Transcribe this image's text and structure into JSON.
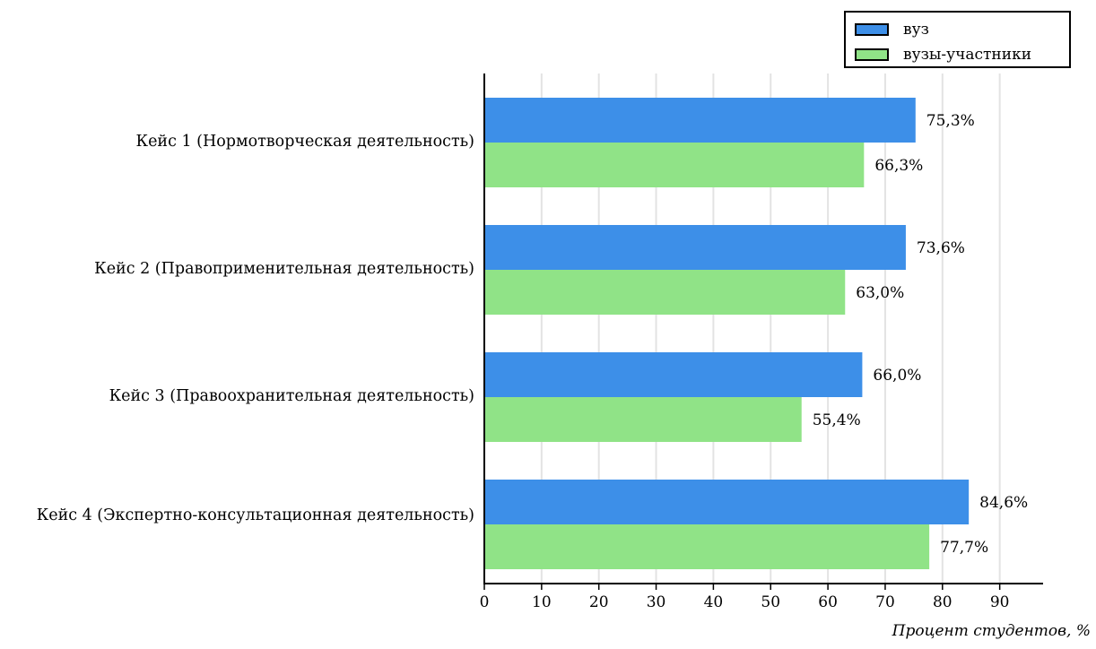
{
  "chart_data": {
    "type": "bar",
    "orientation": "horizontal",
    "categories": [
      "Кейс 1 (Нормотворческая деятельность)",
      "Кейс 2 (Правоприменительная деятельность)",
      "Кейс 3 (Правоохранительная деятельность)",
      "Кейс 4 (Экспертно-консультационная деятельность)"
    ],
    "series": [
      {
        "name": "вуз",
        "color": "#3d8fe8",
        "values": [
          75.3,
          73.6,
          66.0,
          84.6
        ],
        "labels": [
          "75,3%",
          "73,6%",
          "66,0%",
          "84,6%"
        ]
      },
      {
        "name": "вузы-участники",
        "color": "#90e387",
        "values": [
          66.3,
          63.0,
          55.4,
          77.7
        ],
        "labels": [
          "66,3%",
          "63,0%",
          "55,4%",
          "77,7%"
        ]
      }
    ],
    "xlabel": "Процент студентов, %",
    "ylabel": "",
    "xlim": [
      0,
      98
    ],
    "xticks": [
      0,
      10,
      20,
      30,
      40,
      50,
      60,
      70,
      80,
      90
    ],
    "grid": "vertical",
    "legend_position": "top-right"
  }
}
